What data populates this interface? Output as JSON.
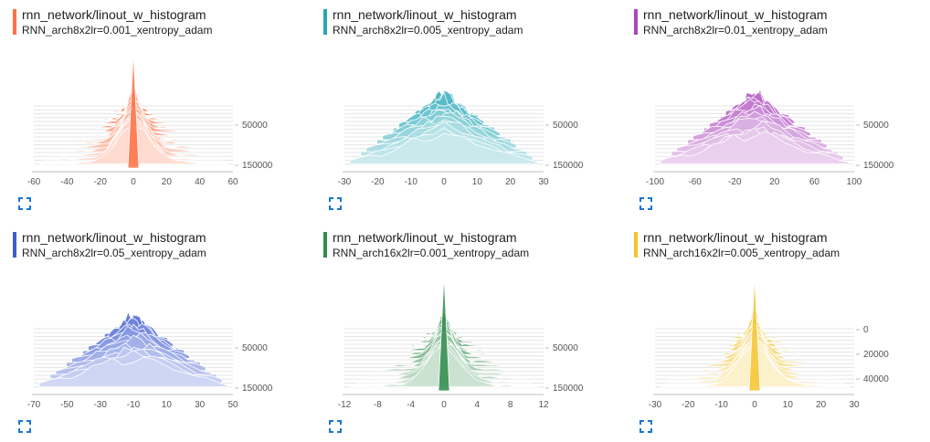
{
  "cards": [
    {
      "title": "rnn_network/linout_w_histogram",
      "subtitle": "RNN_arch8x2lr=0.001_xentropy_adam",
      "color": "#ff7043",
      "chart_data": {
        "type": "area",
        "x_ticks": [
          "-60",
          "-40",
          "-20",
          "0",
          "20",
          "40",
          "60"
        ],
        "x_range": [
          -60,
          60
        ],
        "y_ticks": [
          "50000",
          "150000"
        ],
        "y_range": [
          0,
          150000
        ],
        "shape": "spike"
      }
    },
    {
      "title": "rnn_network/linout_w_histogram",
      "subtitle": "RNN_arch8x2lr=0.005_xentropy_adam",
      "color": "#26a7b7",
      "chart_data": {
        "type": "area",
        "x_ticks": [
          "-30",
          "-20",
          "-10",
          "0",
          "10",
          "20",
          "30"
        ],
        "x_range": [
          -30,
          30
        ],
        "y_ticks": [
          "50000",
          "150000"
        ],
        "y_range": [
          0,
          150000
        ],
        "shape": "multimodal"
      }
    },
    {
      "title": "rnn_network/linout_w_histogram",
      "subtitle": "RNN_arch8x2lr=0.01_xentropy_adam",
      "color": "#ab47bc",
      "chart_data": {
        "type": "area",
        "x_ticks": [
          "-100",
          "-60",
          "-20",
          "20",
          "60",
          "100"
        ],
        "x_range": [
          -100,
          100
        ],
        "y_ticks": [
          "50000",
          "150000"
        ],
        "y_range": [
          0,
          150000
        ],
        "shape": "multimodal"
      }
    },
    {
      "title": "rnn_network/linout_w_histogram",
      "subtitle": "RNN_arch8x2lr=0.05_xentropy_adam",
      "color": "#3f5bd1",
      "chart_data": {
        "type": "area",
        "x_ticks": [
          "-70",
          "-50",
          "-30",
          "-10",
          "10",
          "30",
          "50"
        ],
        "x_range": [
          -70,
          50
        ],
        "y_ticks": [
          "50000",
          "150000"
        ],
        "y_range": [
          0,
          150000
        ],
        "shape": "multimodal"
      }
    },
    {
      "title": "rnn_network/linout_w_histogram",
      "subtitle": "RNN_arch16x2lr=0.001_xentropy_adam",
      "color": "#2e8b4a",
      "chart_data": {
        "type": "area",
        "x_ticks": [
          "-12",
          "-8",
          "-4",
          "0",
          "4",
          "8",
          "12"
        ],
        "x_range": [
          -12,
          12
        ],
        "y_ticks": [
          "50000",
          "150000"
        ],
        "y_range": [
          0,
          150000
        ],
        "shape": "spike"
      }
    },
    {
      "title": "rnn_network/linout_w_histogram",
      "subtitle": "RNN_arch16x2lr=0.005_xentropy_adam",
      "color": "#f4c430",
      "chart_data": {
        "type": "area",
        "x_ticks": [
          "-30",
          "-20",
          "-10",
          "0",
          "10",
          "20",
          "30"
        ],
        "x_range": [
          -30,
          30
        ],
        "y_ticks": [
          "0",
          "20000",
          "40000"
        ],
        "y_range": [
          0,
          50000
        ],
        "shape": "spike"
      }
    }
  ]
}
